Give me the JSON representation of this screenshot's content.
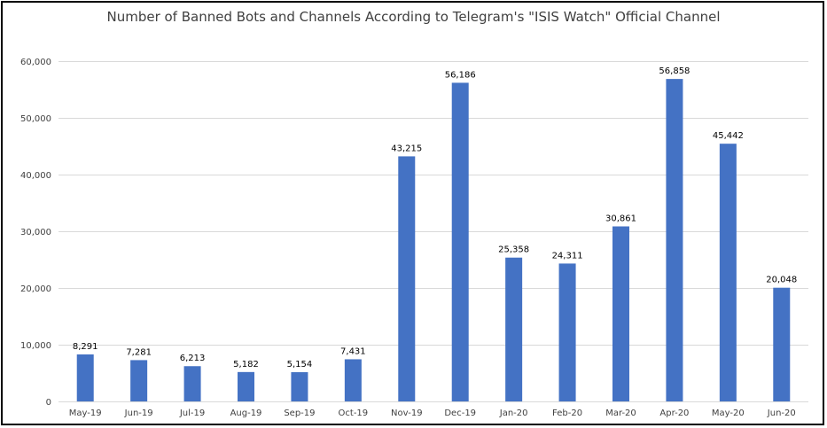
{
  "chart_data": {
    "type": "bar",
    "title": "Number of Banned Bots and Channels According to Telegram's \"ISIS Watch\"  Official Channel",
    "xlabel": "",
    "ylabel": "",
    "categories": [
      "May-19",
      "Jun-19",
      "Jul-19",
      "Aug-19",
      "Sep-19",
      "Oct-19",
      "Nov-19",
      "Dec-19",
      "Jan-20",
      "Feb-20",
      "Mar-20",
      "Apr-20",
      "May-20",
      "Jun-20"
    ],
    "values": [
      8291,
      7281,
      6213,
      5182,
      5154,
      7431,
      43215,
      56186,
      25358,
      24311,
      30861,
      56858,
      45442,
      20048
    ],
    "data_labels": [
      "8,291",
      "7,281",
      "6,213",
      "5,182",
      "5,154",
      "7,431",
      "43,215",
      "56,186",
      "25,358",
      "24,311",
      "30,861",
      "56,858",
      "45,442",
      "20,048"
    ],
    "y_ticks": [
      0,
      10000,
      20000,
      30000,
      40000,
      50000,
      60000
    ],
    "y_tick_labels": [
      "0",
      "10,000",
      "20,000",
      "30,000",
      "40,000",
      "50,000",
      "60,000"
    ],
    "ylim": [
      0,
      60000
    ],
    "grid": true,
    "legend": "none",
    "bar_color": "#4472C4",
    "grid_color": "#D9D9D9"
  }
}
